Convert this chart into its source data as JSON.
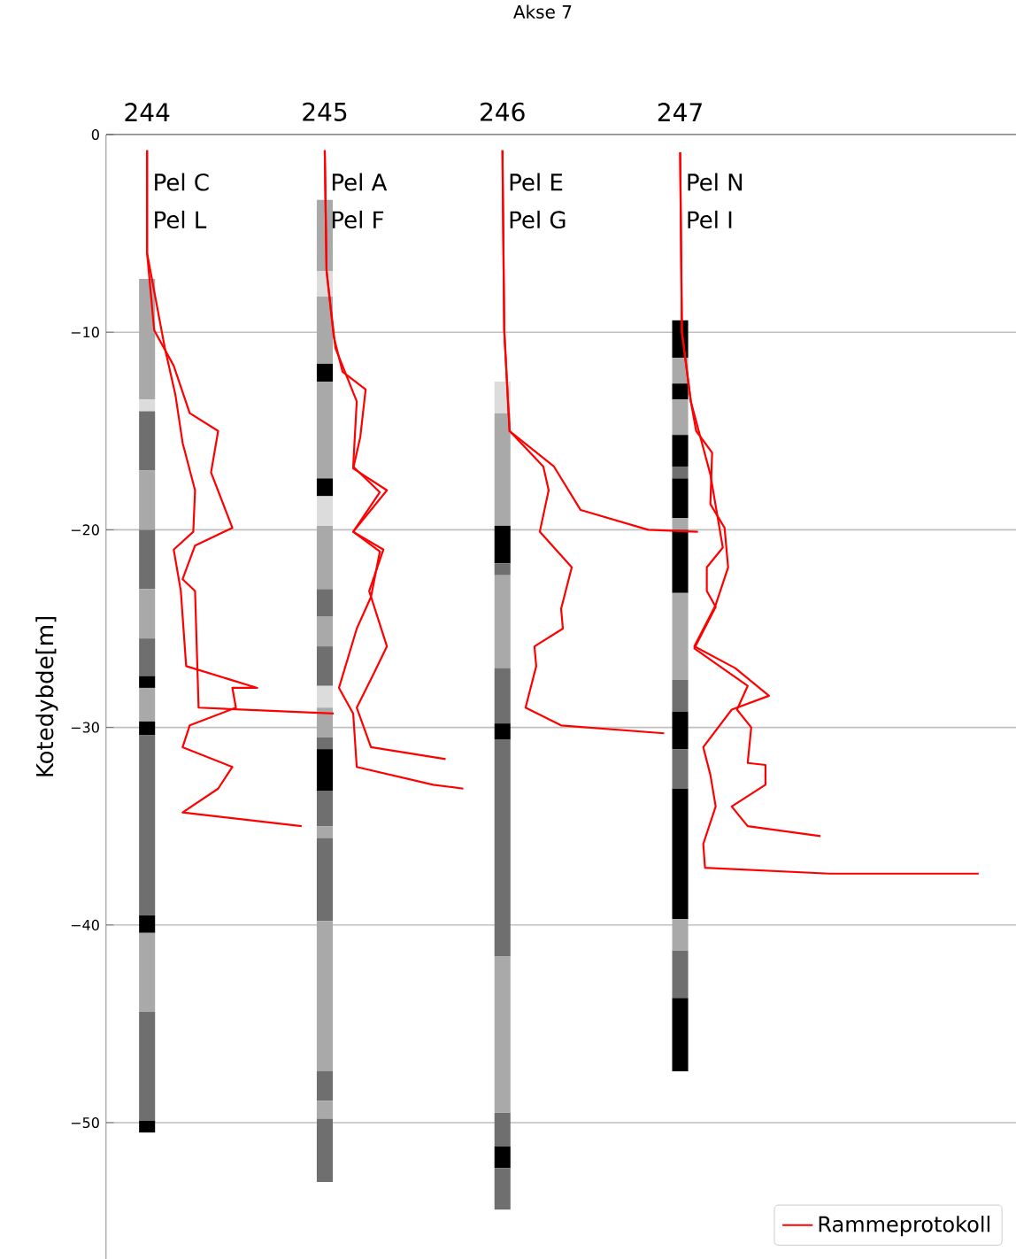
{
  "chart_data": {
    "type": "bar",
    "title": "Akse 7",
    "ylabel": "Kotedybde[m]",
    "xlim": [
      243.77,
      248.89
    ],
    "xticks": [
      244,
      245,
      246,
      247
    ],
    "ylim": [
      -56.9,
      0
    ],
    "yticks": [
      0,
      {
        "value": -10,
        "label": "−10"
      },
      {
        "value": -20,
        "label": "−20"
      },
      {
        "value": -30,
        "label": "−30"
      },
      {
        "value": -40,
        "label": "−40"
      },
      {
        "value": -50,
        "label": "−50"
      }
    ],
    "grid": "y",
    "legend": "bottom right",
    "annotations": [
      "Pel C",
      "Pel L",
      "Pel A",
      "Pel F",
      "Pel E",
      "Pel G",
      "Pel N",
      "Pel I"
    ],
    "series": [
      {
        "x": [
          244,
          245,
          246,
          247
        ],
        "base": [
          -7.3,
          -3.3,
          -12.5,
          -9.4
        ],
        "values": [
          -6.1,
          -3.6,
          -1.6,
          -1.9
        ],
        "colors": [
          "#a9a9a9",
          "#a9a9a9",
          "#dcdcdc",
          "#000000"
        ]
      },
      {
        "x": [
          244,
          245,
          246,
          247
        ],
        "base": [
          -13.4,
          -6.9,
          -14.1,
          -11.3
        ],
        "values": [
          -0.6,
          -1.3,
          -5.7,
          -1.3
        ],
        "colors": [
          "#dcdcdc",
          "#dcdcdc",
          "#a9a9a9",
          "#a9a9a9"
        ]
      },
      {
        "x": [
          244,
          245,
          246,
          247
        ],
        "base": [
          -14.0,
          -8.2,
          -19.8,
          -12.6
        ],
        "values": [
          -3,
          -3.4,
          -1.9,
          -0.8
        ],
        "colors": [
          "#6f6f6f",
          "#a9a9a9",
          "#000000",
          "#000000"
        ]
      },
      {
        "x": [
          244,
          245,
          246,
          247
        ],
        "base": [
          -17.0,
          -11.6,
          -21.7,
          -13.4
        ],
        "values": [
          -3,
          -0.9,
          -0.6,
          -1.8
        ],
        "colors": [
          "#a9a9a9",
          "#000000",
          "#6f6f6f",
          "#a9a9a9"
        ]
      },
      {
        "x": [
          244,
          245,
          246,
          247
        ],
        "base": [
          -20.0,
          -12.5,
          -22.3,
          -15.2
        ],
        "values": [
          -3,
          -4.9,
          -4.7,
          -1.6
        ],
        "colors": [
          "#6f6f6f",
          "#a9a9a9",
          "#a9a9a9",
          "#000000"
        ]
      },
      {
        "x": [
          244,
          245,
          246,
          247
        ],
        "base": [
          -23.0,
          -17.4,
          -27.0,
          -16.8
        ],
        "values": [
          -2.5,
          -0.9,
          -2.8,
          -0.6
        ],
        "colors": [
          "#a9a9a9",
          "#000000",
          "#6f6f6f",
          "#6f6f6f"
        ]
      },
      {
        "x": [
          244,
          245,
          246,
          247
        ],
        "base": [
          -25.5,
          -18.3,
          -29.8,
          -17.4
        ],
        "values": [
          -1.9,
          -1.5,
          -0.8,
          -2.0
        ],
        "colors": [
          "#6f6f6f",
          "#dcdcdc",
          "#000000",
          "#000000"
        ]
      },
      {
        "x": [
          244,
          245,
          246,
          247
        ],
        "base": [
          -27.4,
          -19.8,
          -30.6,
          -19.4
        ],
        "values": [
          -0.6,
          -3.2,
          -11,
          -0.6
        ],
        "colors": [
          "#000000",
          "#a9a9a9",
          "#6f6f6f",
          "#a9a9a9"
        ]
      },
      {
        "x": [
          244,
          245,
          246,
          247
        ],
        "base": [
          -28.0,
          -23.0,
          -41.6,
          -20.0
        ],
        "values": [
          -1.7,
          -1.4,
          -7.9,
          -3.2
        ],
        "colors": [
          "#a9a9a9",
          "#6f6f6f",
          "#a9a9a9",
          "#000000"
        ]
      },
      {
        "x": [
          244,
          245,
          246,
          247
        ],
        "base": [
          -29.7,
          -24.4,
          -49.5,
          -23.2
        ],
        "values": [
          -0.7,
          -1.5,
          -1.7,
          -4.4
        ],
        "colors": [
          "#000000",
          "#a9a9a9",
          "#6f6f6f",
          "#a9a9a9"
        ]
      },
      {
        "x": [
          244,
          245,
          246,
          247
        ],
        "base": [
          -30.4,
          -25.9,
          -51.2,
          -27.6
        ],
        "values": [
          -9.1,
          -2,
          -1.1,
          -1.6
        ],
        "colors": [
          "#6f6f6f",
          "#6f6f6f",
          "#000000",
          "#6f6f6f"
        ]
      },
      {
        "x": [
          244,
          245,
          246,
          247
        ],
        "base": [
          -39.5,
          -27.9,
          -52.3,
          -29.2
        ],
        "values": [
          -0.9,
          -1.1,
          -2.1,
          -1.9
        ],
        "colors": [
          "#000000",
          "#dcdcdc",
          "#6f6f6f",
          "#000000"
        ]
      },
      {
        "x": [
          244,
          245,
          null,
          247
        ],
        "base": [
          -40.4,
          -29.0,
          null,
          -31.1
        ],
        "values": [
          -4,
          -1.5,
          null,
          -2
        ],
        "colors": [
          "#a9a9a9",
          "#a9a9a9",
          null,
          "#6f6f6f"
        ]
      },
      {
        "x": [
          244,
          245,
          null,
          247
        ],
        "base": [
          -44.4,
          -30.5,
          null,
          -33.1
        ],
        "values": [
          -5.5,
          -0.6,
          null,
          -6.6
        ],
        "colors": [
          "#6f6f6f",
          "#6f6f6f",
          null,
          "#000000"
        ]
      },
      {
        "x": [
          244,
          245,
          null,
          247
        ],
        "base": [
          -49.9,
          -31.1,
          null,
          -39.7
        ],
        "values": [
          -0.6,
          -2.1,
          null,
          -1.6
        ],
        "colors": [
          "#000000",
          "#000000",
          null,
          "#a9a9a9"
        ]
      },
      {
        "x": [
          null,
          245,
          null,
          247
        ],
        "base": [
          null,
          -33.2,
          null,
          -41.3
        ],
        "values": [
          null,
          -1.8,
          null,
          -2.4
        ],
        "colors": [
          null,
          "#6f6f6f",
          null,
          "#6f6f6f"
        ]
      },
      {
        "x": [
          null,
          245,
          null,
          247
        ],
        "base": [
          null,
          -35.0,
          null,
          -43.7
        ],
        "values": [
          null,
          -0.6,
          null,
          -3.7
        ],
        "colors": [
          null,
          "#a9a9a9",
          null,
          "#000000"
        ]
      },
      {
        "x": [
          null,
          245,
          null,
          null
        ],
        "base": [
          null,
          -35.6,
          null,
          null
        ],
        "values": [
          null,
          -4.2,
          null,
          null
        ],
        "colors": [
          null,
          "#6f6f6f",
          null,
          null
        ]
      },
      {
        "x": [
          null,
          245,
          null,
          null
        ],
        "base": [
          null,
          -39.8,
          null,
          null
        ],
        "values": [
          null,
          -7.6,
          null,
          null
        ],
        "colors": [
          null,
          "#a9a9a9",
          null,
          null
        ]
      },
      {
        "x": [
          null,
          245,
          null,
          null
        ],
        "base": [
          null,
          -47.4,
          null,
          null
        ],
        "values": [
          null,
          -1.5,
          null,
          null
        ],
        "colors": [
          null,
          "#6f6f6f",
          null,
          null
        ]
      },
      {
        "x": [
          null,
          245,
          null,
          null
        ],
        "base": [
          null,
          -48.9,
          null,
          null
        ],
        "values": [
          null,
          -0.9,
          null,
          null
        ],
        "colors": [
          null,
          "#a9a9a9",
          null,
          null
        ]
      },
      {
        "x": [
          null,
          245,
          null,
          null
        ],
        "base": [
          null,
          -49.8,
          null,
          null
        ],
        "values": [
          null,
          -3.2,
          null,
          null
        ],
        "colors": [
          null,
          "#6f6f6f",
          null,
          null
        ]
      },
      {
        "type": "line",
        "name": "Rammeprotokoll",
        "color": "#ff0000",
        "x": [
          244,
          244,
          244.04,
          244.15,
          244.24,
          244.4,
          244.36,
          244.48,
          244.27,
          244.2,
          244.27,
          244.29,
          245.05
        ],
        "values": [
          -0.8,
          -6.0,
          -9.9,
          -11.7,
          -14.1,
          -15.0,
          -17.1,
          -19.9,
          -20.8,
          -22.5,
          -23.1,
          -29.0,
          -29.3
        ]
      },
      {
        "type": "line",
        "color": "#ff0000",
        "x": [
          244,
          244,
          244.1,
          244.16,
          244.2,
          244.27,
          244.26,
          244.15,
          244.19,
          244.22,
          244.62,
          244.48,
          244.5,
          244.24,
          244.2,
          244.48,
          244.4,
          244.2,
          244.87
        ],
        "values": [
          -0.8,
          -6.0,
          -10.8,
          -13.2,
          -15.6,
          -18.0,
          -20.1,
          -21.0,
          -23.1,
          -26.9,
          -28.0,
          -28.0,
          -29.0,
          -29.9,
          -31.0,
          -32.0,
          -33.1,
          -34.3,
          -35.0
        ]
      },
      {
        "type": "line",
        "color": "#ff0000",
        "x": [
          245.0,
          245.01,
          245.05,
          245.1,
          245.23,
          245.2,
          245.16,
          245.35,
          245.16,
          245.33,
          245.25,
          245.35,
          245.28,
          245.18,
          245.26,
          245.68
        ],
        "values": [
          -0.8,
          -6.9,
          -10.2,
          -12.0,
          -12.9,
          -15.3,
          -16.9,
          -18.0,
          -20.1,
          -21.0,
          -23.1,
          -25.9,
          -27.2,
          -29.0,
          -31.0,
          -31.6
        ]
      },
      {
        "type": "line",
        "color": "#ff0000",
        "x": [
          245.0,
          245.01,
          245.06,
          245.18,
          245.16,
          245.31,
          245.16,
          245.31,
          245.26,
          245.18,
          245.08,
          245.16,
          245.18,
          245.61,
          245.78
        ],
        "values": [
          -0.8,
          -6.9,
          -10.8,
          -13.5,
          -16.8,
          -18.1,
          -20.1,
          -21.1,
          -23.4,
          -25.0,
          -28.0,
          -29.3,
          -32.0,
          -32.9,
          -33.1
        ]
      },
      {
        "type": "line",
        "color": "#ff0000",
        "x": [
          246.0,
          246.01,
          246.04,
          246.29,
          246.44,
          246.82,
          247.1
        ],
        "values": [
          -0.8,
          -9.9,
          -15.0,
          -16.8,
          -19.0,
          -20.0,
          -20.1
        ]
      },
      {
        "type": "line",
        "color": "#ff0000",
        "x": [
          246.0,
          246.01,
          246.04,
          246.23,
          246.26,
          246.21,
          246.39,
          246.33,
          246.34,
          246.18,
          246.19,
          246.13,
          246.33,
          246.91
        ],
        "values": [
          -0.8,
          -9.9,
          -15.0,
          -16.8,
          -18.0,
          -20.1,
          -21.9,
          -24.0,
          -25.0,
          -25.9,
          -26.9,
          -29.0,
          -29.9,
          -30.3
        ]
      },
      {
        "type": "line",
        "color": "#ff0000",
        "x": [
          247.0,
          247.01,
          247.06,
          247.09,
          247.18,
          247.17,
          247.25,
          247.27,
          247.2,
          247.08,
          247.31,
          247.5,
          247.29,
          247.13,
          247.17,
          247.2,
          247.13,
          247.14,
          247.84,
          248.68
        ],
        "values": [
          -0.9,
          -10.0,
          -13.5,
          -15.0,
          -16.1,
          -18.7,
          -19.9,
          -21.9,
          -23.8,
          -25.9,
          -27.0,
          -28.4,
          -29.1,
          -31.0,
          -32.4,
          -34.0,
          -35.9,
          -37.1,
          -37.4,
          -37.4
        ]
      },
      {
        "type": "line",
        "color": "#ff0000",
        "x": [
          247.0,
          247.01,
          247.06,
          247.17,
          247.24,
          247.15,
          247.15,
          247.2,
          247.08,
          247.38,
          247.32,
          247.4,
          247.38,
          247.48,
          247.48,
          247.29,
          247.38,
          247.79
        ],
        "values": [
          -0.9,
          -10.0,
          -13.5,
          -17.2,
          -20.9,
          -21.9,
          -23.1,
          -23.9,
          -26.0,
          -27.9,
          -29.1,
          -30.0,
          -31.8,
          -31.9,
          -32.9,
          -34.0,
          -35.0,
          -35.5
        ]
      }
    ]
  }
}
